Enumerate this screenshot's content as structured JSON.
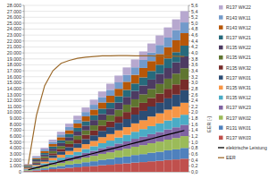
{
  "chart_data": {
    "type": "bar",
    "stacked": true,
    "grid": true,
    "legend": "right",
    "y2_label": "EER [-]",
    "categories": [
      null,
      null,
      null,
      null,
      null,
      null,
      null,
      null,
      null,
      null,
      null,
      null,
      null,
      null,
      null,
      null,
      null,
      null,
      null,
      null
    ],
    "ylim": [
      0,
      28000
    ],
    "yticks": [
      0,
      {
        "value": 1000,
        "label": "1.000"
      },
      {
        "value": 2000,
        "label": "2.000"
      },
      {
        "value": 3000,
        "label": "3.000"
      },
      {
        "value": 4000,
        "label": "4.000"
      },
      {
        "value": 5000,
        "label": "5.000"
      },
      {
        "value": 6000,
        "label": "6.000"
      },
      {
        "value": 7000,
        "label": "7.000"
      },
      {
        "value": 8000,
        "label": "8.000"
      },
      {
        "value": 9000,
        "label": "9.000"
      },
      {
        "value": 10000,
        "label": "10.000"
      },
      {
        "value": 11000,
        "label": "11.000"
      },
      {
        "value": 12000,
        "label": "12.000"
      },
      {
        "value": 13000,
        "label": "13.000"
      },
      {
        "value": 14000,
        "label": "14.000"
      },
      {
        "value": 15000,
        "label": "15.000"
      },
      {
        "value": 16000,
        "label": "16.000"
      },
      {
        "value": 17000,
        "label": "17.000"
      },
      {
        "value": 18000,
        "label": "18.000"
      },
      {
        "value": 19000,
        "label": "19.000"
      },
      {
        "value": 20000,
        "label": "20.000"
      },
      {
        "value": 21000,
        "label": "21.000"
      },
      {
        "value": 22000,
        "label": "22.000"
      },
      {
        "value": 23000,
        "label": "23.000"
      },
      {
        "value": 24000,
        "label": "24.000"
      },
      {
        "value": 25000,
        "label": "25.000"
      },
      {
        "value": 26000,
        "label": "26.000"
      },
      {
        "value": 27000,
        "label": "27.000"
      },
      {
        "value": 28000,
        "label": "28.000"
      }
    ],
    "y2lim": [
      0,
      5.6
    ],
    "y2ticks": [
      {
        "value": 0,
        "label": "0,0"
      },
      {
        "value": 0.2,
        "label": "0,2"
      },
      {
        "value": 0.4,
        "label": "0,4"
      },
      {
        "value": 0.6,
        "label": "0,6"
      },
      {
        "value": 0.8,
        "label": "0,8"
      },
      {
        "value": 1,
        "label": "1,0"
      },
      {
        "value": 1.2,
        "label": "1,2"
      },
      {
        "value": 1.4,
        "label": "1,4"
      },
      {
        "value": 1.6,
        "label": "1,6"
      },
      {
        "value": 1.8,
        "label": "1,8"
      },
      {
        "value": 2,
        "label": "2,0"
      },
      {
        "value": 2.2,
        "label": "2,2"
      },
      {
        "value": 2.4,
        "label": "2,4"
      },
      {
        "value": 2.6,
        "label": "2,6"
      },
      {
        "value": 2.8,
        "label": "2,8"
      },
      {
        "value": 3,
        "label": "3,0"
      },
      {
        "value": 3.2,
        "label": "3,2"
      },
      {
        "value": 3.4,
        "label": "3,4"
      },
      {
        "value": 3.6,
        "label": "3,6"
      },
      {
        "value": 3.8,
        "label": "3,8"
      },
      {
        "value": 4,
        "label": "4,0"
      },
      {
        "value": 4.2,
        "label": "4,2"
      },
      {
        "value": 4.4,
        "label": "4,4"
      },
      {
        "value": 4.6,
        "label": "4,6"
      },
      {
        "value": 4.8,
        "label": "4,8"
      },
      {
        "value": 5,
        "label": "5,0"
      },
      {
        "value": 5.2,
        "label": "5,2"
      },
      {
        "value": 5.4,
        "label": "5,4"
      },
      {
        "value": 5.6,
        "label": "5,6"
      }
    ],
    "series": [
      {
        "name": "R137 WK03",
        "type": "bar",
        "color": "#c0504d",
        "values": [
          110,
          230,
          320,
          450,
          540,
          680,
          760,
          890,
          980,
          1120,
          1190,
          1330,
          1420,
          1560,
          1640,
          1770,
          1860,
          2000,
          2080,
          2210
        ]
      },
      {
        "name": "R131 WK01",
        "type": "bar",
        "color": "#4f81bd",
        "values": [
          80,
          190,
          260,
          370,
          440,
          550,
          620,
          730,
          800,
          910,
          980,
          1090,
          1160,
          1270,
          1340,
          1450,
          1520,
          1630,
          1700,
          1810
        ]
      },
      {
        "name": "R137 WK02",
        "type": "bar",
        "color": "#9bbb59",
        "values": [
          100,
          190,
          310,
          390,
          510,
          590,
          710,
          790,
          910,
          990,
          1110,
          1190,
          1310,
          1390,
          1510,
          1590,
          1710,
          1790,
          1910,
          1990
        ]
      },
      {
        "name": "R137 WK23",
        "type": "bar",
        "color": "#8064a2",
        "values": [
          90,
          200,
          280,
          390,
          470,
          580,
          660,
          770,
          850,
          960,
          1040,
          1150,
          1230,
          1340,
          1420,
          1530,
          1610,
          1720,
          1800,
          1900
        ]
      },
      {
        "name": "R135 WK12",
        "type": "bar",
        "color": "#4bacc6",
        "values": [
          90,
          160,
          260,
          330,
          430,
          500,
          600,
          670,
          770,
          840,
          940,
          1010,
          1110,
          1180,
          1280,
          1350,
          1450,
          1510,
          1620,
          1700
        ]
      },
      {
        "name": "R135 WK31",
        "type": "bar",
        "color": "#f79646",
        "values": [
          110,
          200,
          290,
          410,
          490,
          610,
          690,
          810,
          890,
          1010,
          1090,
          1210,
          1290,
          1410,
          1490,
          1610,
          1690,
          1810,
          1890,
          2010
        ]
      },
      {
        "name": "R137 WK01",
        "type": "bar",
        "color": "#2c4d75",
        "values": [
          100,
          220,
          310,
          430,
          520,
          640,
          730,
          850,
          940,
          1060,
          1150,
          1270,
          1360,
          1480,
          1570,
          1690,
          1780,
          1900,
          1990,
          2110
        ]
      },
      {
        "name": "R135 WK32",
        "type": "bar",
        "color": "#772c2a",
        "values": [
          90,
          170,
          280,
          350,
          460,
          530,
          640,
          710,
          820,
          890,
          1000,
          1070,
          1180,
          1250,
          1360,
          1430,
          1540,
          1610,
          1720,
          1790
        ]
      },
      {
        "name": "R135 WK21",
        "type": "bar",
        "color": "#5f7530",
        "values": [
          100,
          180,
          290,
          370,
          480,
          560,
          670,
          750,
          860,
          940,
          1050,
          1130,
          1240,
          1320,
          1430,
          1510,
          1620,
          1700,
          1810,
          1910
        ]
      },
      {
        "name": "R135 WK22",
        "type": "bar",
        "color": "#4d3b62",
        "values": [
          90,
          210,
          300,
          400,
          510,
          590,
          700,
          810,
          890,
          1010,
          1100,
          1190,
          1310,
          1400,
          1500,
          1590,
          1710,
          1790,
          1900,
          2000
        ]
      },
      {
        "name": "R137 WK21",
        "type": "bar",
        "color": "#276a7c",
        "values": [
          100,
          170,
          270,
          370,
          450,
          550,
          620,
          720,
          810,
          900,
          990,
          1080,
          1170,
          1260,
          1350,
          1440,
          1530,
          1620,
          1710,
          1800
        ]
      },
      {
        "name": "R143 WK12",
        "type": "bar",
        "color": "#b65708",
        "values": [
          110,
          200,
          320,
          420,
          520,
          620,
          740,
          830,
          950,
          1040,
          1160,
          1250,
          1370,
          1460,
          1580,
          1670,
          1790,
          1880,
          2000,
          2100
        ]
      },
      {
        "name": "R143 WK11",
        "type": "bar",
        "color": "#729aca",
        "values": [
          80,
          190,
          270,
          360,
          460,
          540,
          630,
          730,
          810,
          900,
          990,
          1080,
          1170,
          1260,
          1350,
          1440,
          1530,
          1620,
          1710,
          1800
        ]
      },
      {
        "name": "R137 WK22",
        "type": "bar",
        "color": "#b7a8cf",
        "values": [
          100,
          180,
          290,
          380,
          470,
          570,
          670,
          760,
          860,
          950,
          1040,
          1140,
          1240,
          1330,
          1430,
          1520,
          1610,
          1710,
          1810,
          1900
        ]
      },
      {
        "name": "elektrische Leistung",
        "type": "line",
        "color": "#000000",
        "values": [
          340,
          690,
          1040,
          1390,
          1740,
          2080,
          2430,
          2780,
          3130,
          3480,
          3830,
          4170,
          4520,
          4870,
          5220,
          5570,
          5920,
          6260,
          6610,
          6960
        ]
      },
      {
        "name": "EER",
        "type": "line",
        "axis": "y2",
        "color": "#9c6a2b",
        "values": [
          0.25,
          1.9,
          2.9,
          3.4,
          3.65,
          3.75,
          3.82,
          3.86,
          3.88,
          3.9,
          3.9,
          3.91,
          3.91,
          3.9,
          3.9,
          3.9,
          3.89,
          3.9,
          3.89,
          3.88
        ]
      }
    ]
  }
}
